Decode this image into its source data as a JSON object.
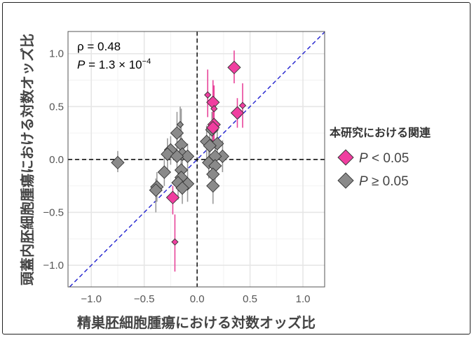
{
  "chart_data": {
    "type": "scatter",
    "xlabel": "精巣胚細胞腫瘍における対数オッズ比",
    "ylabel": "頭蓋内胚細胞腫瘍における対数オッズ比",
    "xlim": [
      -1.22,
      1.205
    ],
    "ylim": [
      -1.205,
      1.21
    ],
    "xticks": [
      -1.0,
      -0.5,
      0.0,
      0.5,
      1.0
    ],
    "yticks": [
      -1.0,
      -0.5,
      0.0,
      0.5,
      1.0
    ],
    "xtick_labels": [
      "−1.0",
      "−0.5",
      "0.0",
      "0.5",
      "1.0"
    ],
    "ytick_labels": [
      "−1.0",
      "−0.5",
      "0.0",
      "0.5",
      "1.0"
    ],
    "grid": true,
    "annotation": {
      "rho": "ρ = 0.48",
      "p_prefix": "P = 1.3 × 10",
      "p_exp": "−4"
    },
    "reference_lines": {
      "h": 0,
      "v": 0,
      "diagonal": "y = x"
    },
    "legend": {
      "title": "本研究における関連",
      "placement": "right",
      "entries": [
        {
          "label_p": "P",
          "label_rest": " < 0.05",
          "color": "#f03ea0"
        },
        {
          "label_p": "P",
          "label_rest": " ≥ 0.05",
          "color": "#8a8a8a"
        }
      ]
    },
    "colors": {
      "sig": "#f03ea0",
      "sig_bar": "#e8449a",
      "nonsig": "#8a8a8a",
      "nonsig_bar": "#9a9a9a",
      "diag": "#1f1fcf"
    },
    "series": [
      {
        "name": "P < 0.05",
        "points": [
          {
            "x": 0.35,
            "y": 0.87,
            "lo": 0.72,
            "hi": 1.03,
            "size": "large"
          },
          {
            "x": 0.15,
            "y": 0.54,
            "lo": 0.3,
            "hi": 0.75,
            "size": "large"
          },
          {
            "x": 0.38,
            "y": 0.44,
            "lo": 0.3,
            "hi": 0.58,
            "size": "large"
          },
          {
            "x": 0.43,
            "y": 0.51,
            "lo": 0.3,
            "hi": 0.72,
            "size": "small"
          },
          {
            "x": 0.1,
            "y": 0.61,
            "lo": 0.4,
            "hi": 0.85,
            "size": "small"
          },
          {
            "x": 0.16,
            "y": 0.48,
            "lo": 0.3,
            "hi": 0.7,
            "size": "small"
          },
          {
            "x": 0.16,
            "y": 0.33,
            "lo": 0.18,
            "hi": 0.5,
            "size": "large"
          },
          {
            "x": 0.15,
            "y": 0.3,
            "lo": 0.1,
            "hi": 0.5,
            "size": "large"
          },
          {
            "x": -0.23,
            "y": -0.36,
            "lo": -0.52,
            "hi": -0.25,
            "size": "large"
          },
          {
            "x": -0.21,
            "y": -0.78,
            "lo": -1.06,
            "hi": -0.52,
            "size": "small"
          }
        ]
      },
      {
        "name": "P ≥ 0.05",
        "points": [
          {
            "x": -0.75,
            "y": -0.03,
            "lo": -0.12,
            "hi": 0.08,
            "size": "large"
          },
          {
            "x": -0.16,
            "y": 0.33,
            "lo": 0.15,
            "hi": 0.5,
            "size": "small"
          },
          {
            "x": -0.19,
            "y": 0.25,
            "lo": 0.05,
            "hi": 0.45,
            "size": "large"
          },
          {
            "x": -0.25,
            "y": 0.09,
            "lo": -0.05,
            "hi": 0.22,
            "size": "large"
          },
          {
            "x": -0.28,
            "y": 0.05,
            "lo": -0.1,
            "hi": 0.2,
            "size": "large"
          },
          {
            "x": -0.31,
            "y": -0.12,
            "lo": -0.25,
            "hi": 0.02,
            "size": "large"
          },
          {
            "x": -0.38,
            "y": -0.26,
            "lo": -0.4,
            "hi": -0.12,
            "size": "large"
          },
          {
            "x": -0.39,
            "y": -0.29,
            "lo": -0.5,
            "hi": -0.18,
            "size": "large"
          },
          {
            "x": -0.15,
            "y": 0.14,
            "lo": -0.05,
            "hi": 0.48,
            "size": "large"
          },
          {
            "x": -0.14,
            "y": 0.05,
            "lo": -0.1,
            "hi": 0.2,
            "size": "large"
          },
          {
            "x": -0.09,
            "y": 0.03,
            "lo": -0.1,
            "hi": 0.15,
            "size": "large"
          },
          {
            "x": -0.19,
            "y": 0.03,
            "lo": -0.12,
            "hi": 0.18,
            "size": "large"
          },
          {
            "x": -0.15,
            "y": -0.1,
            "lo": -0.25,
            "hi": 0.05,
            "size": "large"
          },
          {
            "x": -0.15,
            "y": -0.17,
            "lo": -0.3,
            "hi": -0.02,
            "size": "large"
          },
          {
            "x": -0.18,
            "y": -0.22,
            "lo": -0.38,
            "hi": -0.08,
            "size": "large"
          },
          {
            "x": -0.09,
            "y": -0.23,
            "lo": -0.4,
            "hi": -0.08,
            "size": "large"
          },
          {
            "x": -0.14,
            "y": -0.27,
            "lo": -0.42,
            "hi": -0.12,
            "size": "large"
          },
          {
            "x": 0.14,
            "y": 0.28,
            "lo": 0.1,
            "hi": 0.45,
            "size": "large"
          },
          {
            "x": 0.09,
            "y": 0.17,
            "lo": 0.0,
            "hi": 0.32,
            "size": "large"
          },
          {
            "x": 0.19,
            "y": 0.15,
            "lo": 0.0,
            "hi": 0.3,
            "size": "large"
          },
          {
            "x": 0.12,
            "y": 0.13,
            "lo": -0.02,
            "hi": 0.28,
            "size": "large"
          },
          {
            "x": 0.24,
            "y": 0.03,
            "lo": -0.12,
            "hi": 0.18,
            "size": "large"
          },
          {
            "x": 0.17,
            "y": 0.03,
            "lo": -0.12,
            "hi": 0.18,
            "size": "large"
          },
          {
            "x": 0.11,
            "y": -0.03,
            "lo": -0.18,
            "hi": 0.12,
            "size": "large"
          },
          {
            "x": 0.17,
            "y": -0.06,
            "lo": -0.22,
            "hi": 0.1,
            "size": "large"
          },
          {
            "x": 0.15,
            "y": -0.14,
            "lo": -0.3,
            "hi": 0.02,
            "size": "large"
          },
          {
            "x": 0.15,
            "y": -0.25,
            "lo": -0.42,
            "hi": -0.1,
            "size": "large"
          }
        ]
      }
    ]
  }
}
